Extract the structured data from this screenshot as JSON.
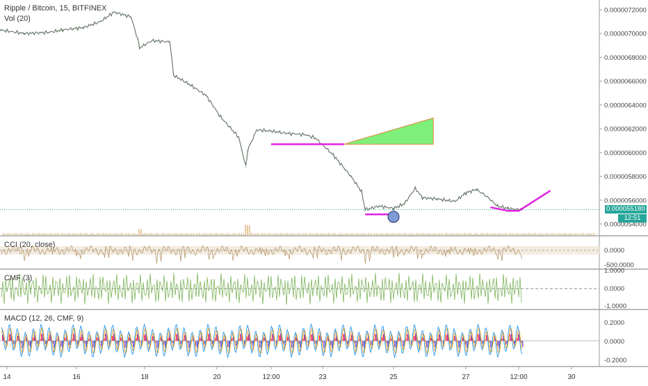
{
  "header": {
    "title": "Ripple / Bitcoin, 15, BITFINEX",
    "volume_label": "Vol (20)"
  },
  "price_axis": {
    "ticks": [
      "0.0000072000",
      "0.0000070000",
      "0.0000068000",
      "0.0000066000",
      "0.0000064000",
      "0.0000062000",
      "0.0000060000",
      "0.0000058000",
      "0.0000056000",
      "0.0000054000"
    ],
    "last_price": "0.000055180",
    "countdown": "12:51"
  },
  "panes": {
    "cci": {
      "label": "CCI (20, close)",
      "ticks": [
        "0.0000",
        "-500.0000"
      ]
    },
    "cmf": {
      "label": "CMF (3)",
      "ticks": [
        "1.0000",
        "0.0000",
        "-1.0000"
      ]
    },
    "macd": {
      "label": "MACD (12, 26, CMF, 9)",
      "ticks": [
        "0.2000",
        "0.0000",
        "-0.2000"
      ]
    }
  },
  "time_axis": {
    "ticks": [
      "14",
      "16",
      "18",
      "20",
      "12:00",
      "23",
      "25",
      "27",
      "12:00",
      "30"
    ]
  },
  "colors": {
    "candle_up": "#26a69a",
    "candle_down": "#ef5350",
    "price_line": "#6b7a6b",
    "annotation_magenta": "#e020e0",
    "annotation_green": "#7ef07a",
    "current_price": "#26a69a",
    "cci_line": "#b8996e",
    "cmf_line": "#7db45a",
    "macd_line": "#2196f3",
    "signal_line": "#ff9800",
    "hist_pos": "#e91e63",
    "hist_neg": "#7e57c2",
    "marker_circle": "#7f9bd6"
  },
  "chart_data": {
    "type": "line",
    "title": "Ripple / Bitcoin, 15, BITFINEX",
    "x_unit": "day",
    "ylim": [
      5.35e-06,
      7.25e-06
    ],
    "x": [
      13.8,
      14.5,
      15.2,
      15.6,
      16.2,
      16.7,
      17.1,
      17.6,
      17.8,
      17.85,
      18.2,
      18.7,
      18.8,
      19.2,
      19.7,
      20.1,
      20.6,
      20.8,
      20.85,
      21.1,
      21.5,
      22.0,
      22.5,
      22.8,
      23.3,
      23.8,
      24.1,
      24.2,
      24.6,
      25.0,
      25.3,
      25.6,
      25.8,
      26.2,
      26.7,
      27.0,
      27.3,
      27.6,
      27.9,
      28.2,
      28.6
    ],
    "y": [
      7.03e-06,
      7e-06,
      7.01e-06,
      7.03e-06,
      7.05e-06,
      7.1e-06,
      7.18e-06,
      7.14e-06,
      6.95e-06,
      6.88e-06,
      6.94e-06,
      6.93e-06,
      6.65e-06,
      6.58e-06,
      6.48e-06,
      6.3e-06,
      6.13e-06,
      5.88e-06,
      6.02e-06,
      6.19e-06,
      6.18e-06,
      6.16e-06,
      6.15e-06,
      6.12e-06,
      5.98e-06,
      5.8e-06,
      5.67e-06,
      5.52e-06,
      5.55e-06,
      5.53e-06,
      5.57e-06,
      5.7e-06,
      5.62e-06,
      5.61e-06,
      5.59e-06,
      5.66e-06,
      5.69e-06,
      5.63e-06,
      5.55e-06,
      5.53e-06,
      5.518e-06
    ],
    "annotations": {
      "support_line": {
        "x": [
          21.5,
          23.6
        ],
        "y": 6.07e-06
      },
      "bottom_line": {
        "x": [
          24.2,
          25.0
        ],
        "y": 5.48e-06
      },
      "triangle": {
        "x": [
          23.6,
          26.1,
          26.1
        ],
        "y": [
          6.07e-06,
          6.29e-06,
          6.07e-06
        ]
      },
      "lower_trend": {
        "x": [
          27.7,
          28.2,
          28.5
        ],
        "y": [
          5.54e-06,
          5.51e-06,
          5.51e-06
        ]
      },
      "projection": {
        "x": [
          28.5,
          29.4
        ],
        "y": [
          5.51e-06,
          5.68e-06
        ]
      },
      "circle": {
        "x": 25.0,
        "y": 5.46e-06
      }
    }
  }
}
